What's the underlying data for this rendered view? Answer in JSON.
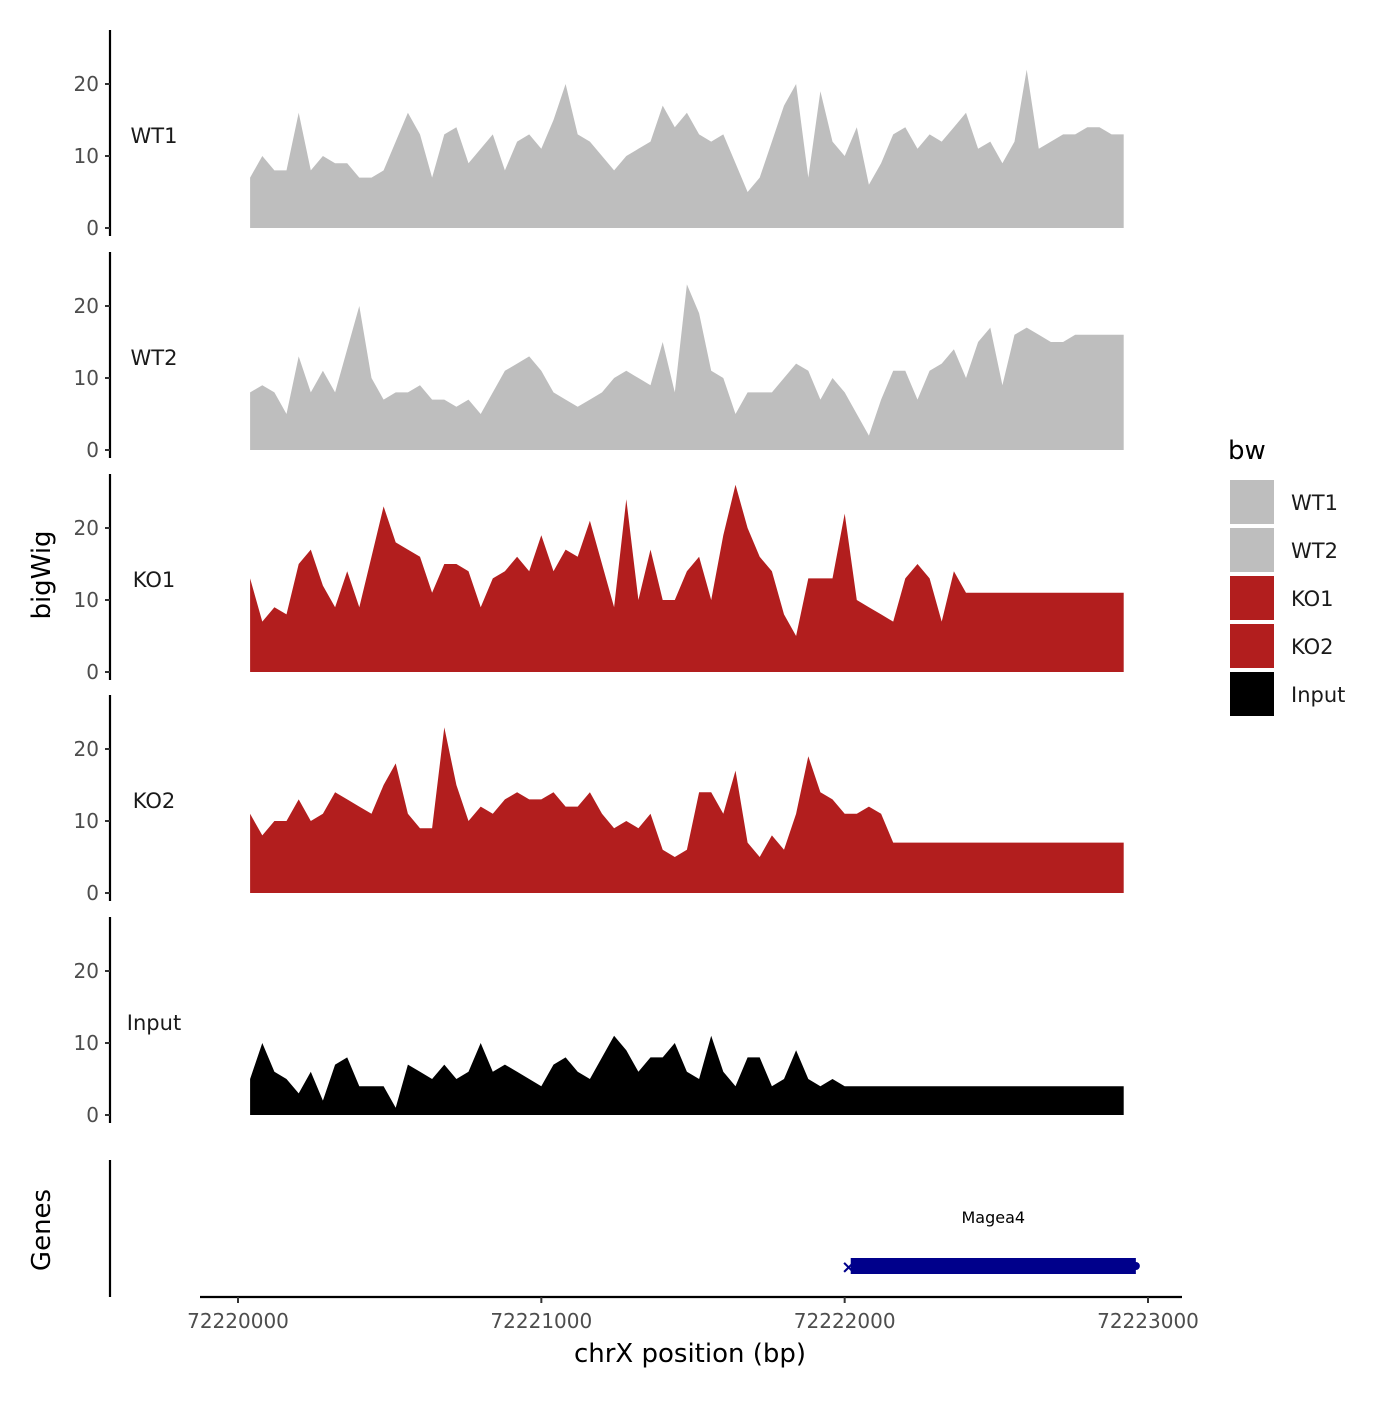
{
  "chart_data": {
    "type": "area",
    "ylabel": "bigWig",
    "xlabel": "chrX position (bp)",
    "genes_label": "Genes",
    "legend_title": "bw",
    "legend_position": "right",
    "grid": false,
    "xlim": [
      72219880,
      72223100
    ],
    "x_ticks": [
      72220000,
      72221000,
      72222000,
      72223000
    ],
    "x_tick_labels": [
      "72220000",
      "72221000",
      "72222000",
      "72223000"
    ],
    "ylim": [
      0,
      27
    ],
    "y_ticks": [
      0,
      10,
      20
    ],
    "y_tick_labels": [
      "0",
      "10",
      "20"
    ],
    "x": [
      72220040,
      72220080,
      72220120,
      72220160,
      72220200,
      72220240,
      72220280,
      72220320,
      72220360,
      72220400,
      72220440,
      72220480,
      72220520,
      72220560,
      72220600,
      72220640,
      72220680,
      72220720,
      72220760,
      72220800,
      72220840,
      72220880,
      72220920,
      72220960,
      72221000,
      72221040,
      72221080,
      72221120,
      72221160,
      72221200,
      72221240,
      72221280,
      72221320,
      72221360,
      72221400,
      72221440,
      72221480,
      72221520,
      72221560,
      72221600,
      72221640,
      72221680,
      72221720,
      72221760,
      72221800,
      72221840,
      72221880,
      72221920,
      72221960,
      72222000,
      72222040,
      72222080,
      72222120,
      72222160,
      72222200,
      72222240,
      72222280,
      72222320,
      72222360,
      72222400,
      72222440,
      72222480,
      72222520,
      72222560,
      72222600,
      72222640,
      72222680,
      72222720,
      72222760,
      72222800,
      72222840,
      72222880,
      72222920
    ],
    "series": [
      {
        "name": "WT1",
        "color": "#bebebe",
        "values": [
          7,
          10,
          8,
          8,
          16,
          8,
          10,
          9,
          9,
          7,
          7,
          8,
          12,
          16,
          13,
          7,
          13,
          14,
          9,
          11,
          13,
          8,
          12,
          13,
          11,
          15,
          20,
          13,
          12,
          10,
          8,
          10,
          11,
          12,
          17,
          14,
          16,
          13,
          12,
          13,
          9,
          5,
          7,
          12,
          17,
          20,
          7,
          19,
          12,
          10,
          14,
          6,
          9,
          13,
          14,
          11,
          13,
          12,
          14,
          16,
          11,
          12,
          9,
          12,
          22,
          11,
          12,
          13,
          13,
          14,
          14,
          13,
          13
        ]
      },
      {
        "name": "WT2",
        "color": "#bebebe",
        "values": [
          8,
          9,
          8,
          5,
          13,
          8,
          11,
          8,
          14,
          20,
          10,
          7,
          8,
          8,
          9,
          7,
          7,
          6,
          7,
          5,
          8,
          11,
          12,
          13,
          11,
          8,
          7,
          6,
          7,
          8,
          10,
          11,
          10,
          9,
          15,
          8,
          23,
          19,
          11,
          10,
          5,
          8,
          8,
          8,
          10,
          12,
          11,
          7,
          10,
          8,
          5,
          2,
          7,
          11,
          11,
          7,
          11,
          12,
          14,
          10,
          15,
          17,
          9,
          16,
          17,
          16,
          15,
          15,
          16,
          16,
          16,
          16,
          16
        ]
      },
      {
        "name": "KO1",
        "color": "#b21e1e",
        "values": [
          13,
          7,
          9,
          8,
          15,
          17,
          12,
          9,
          14,
          9,
          16,
          23,
          18,
          17,
          16,
          11,
          15,
          15,
          14,
          9,
          13,
          14,
          16,
          14,
          19,
          14,
          17,
          16,
          21,
          15,
          9,
          24,
          10,
          17,
          10,
          10,
          14,
          16,
          10,
          19,
          26,
          20,
          16,
          14,
          8,
          5,
          13,
          13,
          13,
          22,
          10,
          9,
          8,
          7,
          13,
          15,
          13,
          7,
          14,
          11,
          11,
          11,
          11,
          11,
          11,
          11,
          11,
          11,
          11,
          11,
          11,
          11,
          11
        ]
      },
      {
        "name": "KO2",
        "color": "#b21e1e",
        "values": [
          11,
          8,
          10,
          10,
          13,
          10,
          11,
          14,
          13,
          12,
          11,
          15,
          18,
          11,
          9,
          9,
          23,
          15,
          10,
          12,
          11,
          13,
          14,
          13,
          13,
          14,
          12,
          12,
          14,
          11,
          9,
          10,
          9,
          11,
          6,
          5,
          6,
          14,
          14,
          11,
          17,
          7,
          5,
          8,
          6,
          11,
          19,
          14,
          13,
          11,
          11,
          12,
          11,
          7,
          7,
          7,
          7,
          7,
          7,
          7,
          7,
          7,
          7,
          7,
          7,
          7,
          7,
          7,
          7,
          7,
          7,
          7,
          7
        ]
      },
      {
        "name": "Input",
        "color": "#000000",
        "values": [
          5,
          10,
          6,
          5,
          3,
          6,
          2,
          7,
          8,
          4,
          4,
          4,
          1,
          7,
          6,
          5,
          7,
          5,
          6,
          10,
          6,
          7,
          6,
          5,
          4,
          7,
          8,
          6,
          5,
          8,
          11,
          9,
          6,
          8,
          8,
          10,
          6,
          5,
          11,
          6,
          4,
          8,
          8,
          4,
          5,
          9,
          5,
          4,
          5,
          4,
          4,
          4,
          4,
          4,
          4,
          4,
          4,
          4,
          4,
          4,
          4,
          4,
          4,
          4,
          4,
          4,
          4,
          4,
          4,
          4,
          4,
          4,
          4
        ]
      }
    ],
    "genes": [
      {
        "name": "Magea4",
        "start": 72222020,
        "end": 72222960,
        "color": "#00008b",
        "strand": "-"
      }
    ]
  }
}
